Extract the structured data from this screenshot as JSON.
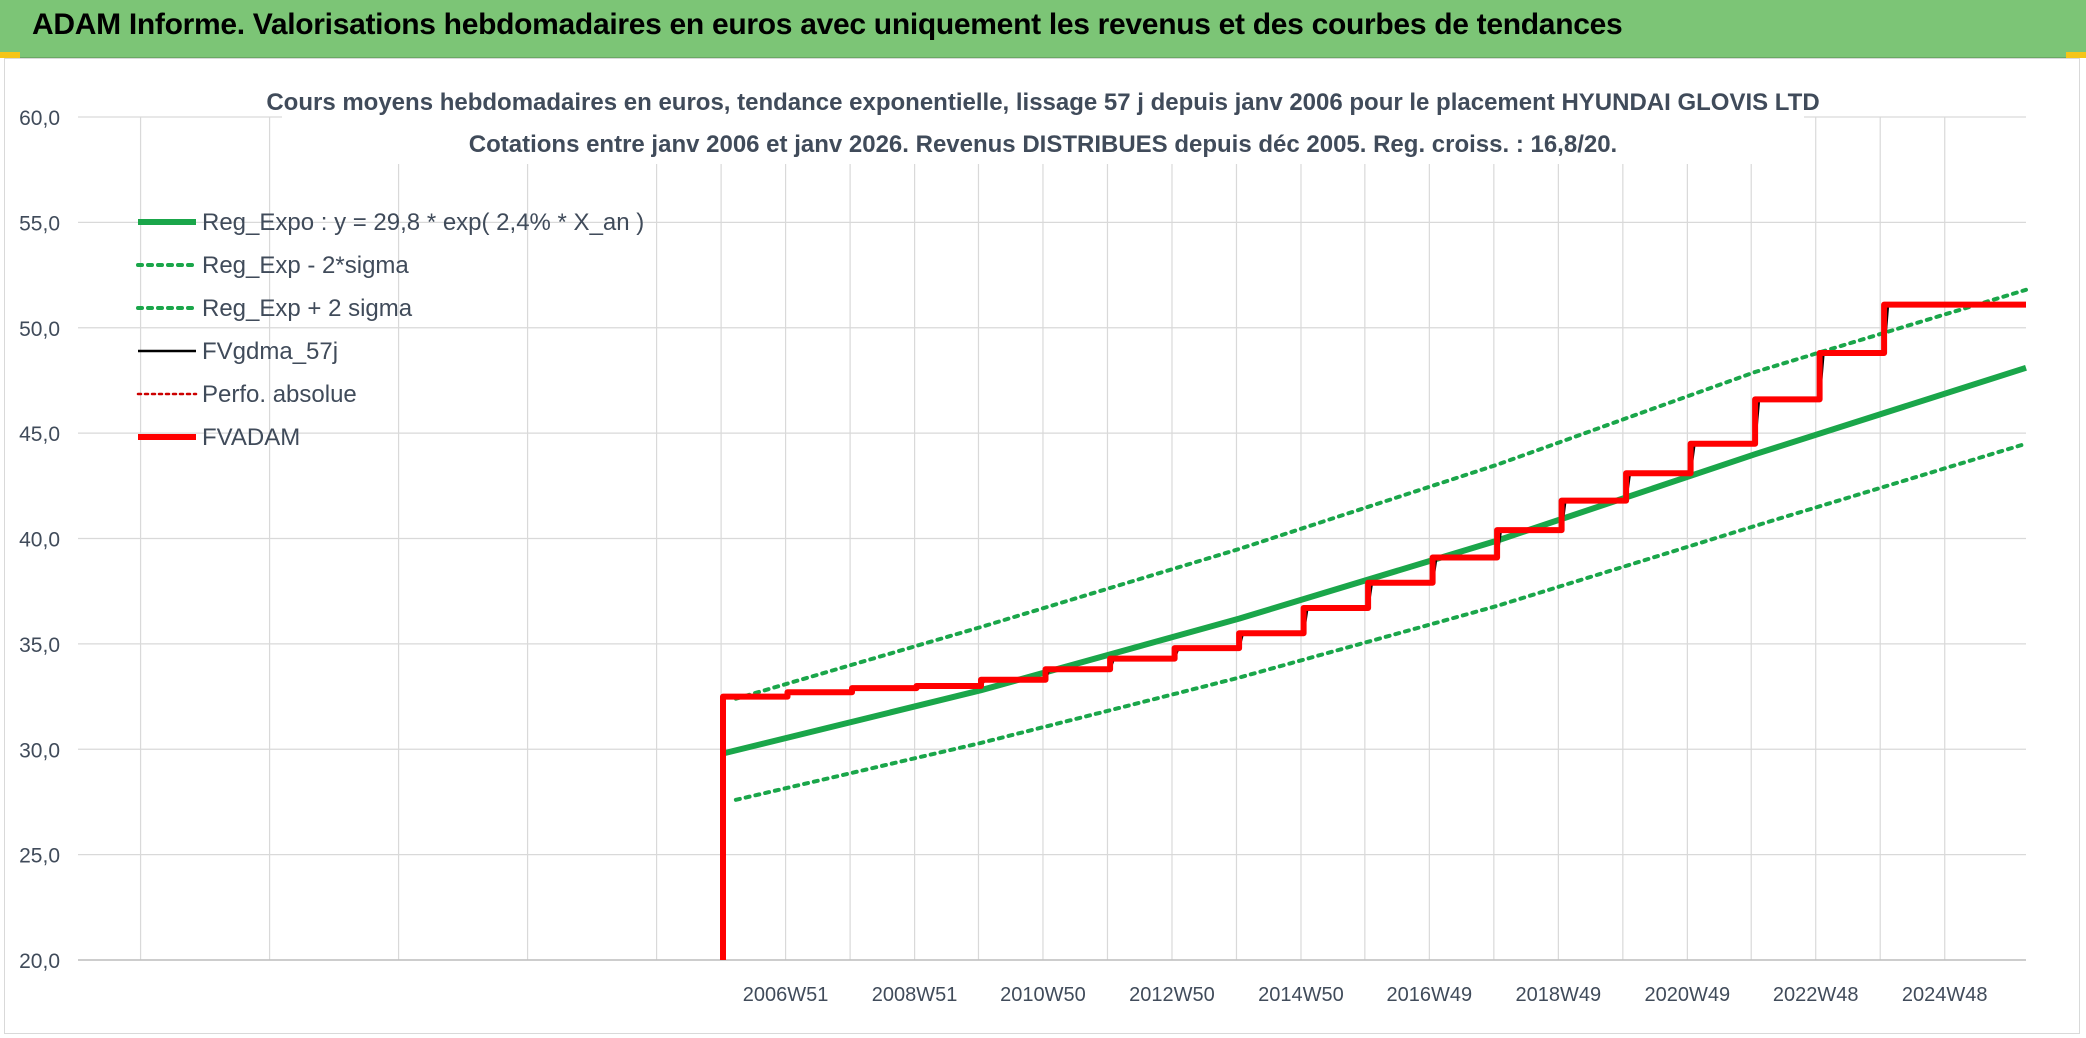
{
  "header": {
    "title": "ADAM Informe. Valorisations hebdomadaires en euros avec uniquement les revenus et des courbes de tendances"
  },
  "colors": {
    "banner": "#7cc576",
    "reg_expo": "#1aa64a",
    "fvgdma": "#000000",
    "fvadam": "#ff0000",
    "perfo": "#cc0000",
    "grid": "#d9d9d9",
    "text": "#404b5a"
  },
  "chart_data": {
    "type": "line",
    "title": "Cours moyens hebdomadaires en euros, tendance exponentielle, lissage 57 j depuis janv 2006 pour le placement HYUNDAI GLOVIS LTD",
    "subtitle": "Cotations entre janv 2006 et janv 2026. Revenus DISTRIBUES depuis déc 2005. Reg. croiss. : 16,8/20.",
    "xlabel": "",
    "ylabel": "",
    "ylim": [
      20,
      60
    ],
    "yticks": [
      "20,0",
      "25,0",
      "30,0",
      "35,0",
      "40,0",
      "45,0",
      "50,0",
      "55,0",
      "60,0"
    ],
    "xlim": [
      1996,
      2026.2
    ],
    "xtick_labels": [
      {
        "label": "2006W51",
        "x": 2006.97
      },
      {
        "label": "2008W51",
        "x": 2008.97
      },
      {
        "label": "2010W50",
        "x": 2010.96
      },
      {
        "label": "2012W50",
        "x": 2012.96
      },
      {
        "label": "2014W50",
        "x": 2014.96
      },
      {
        "label": "2016W49",
        "x": 2016.95
      },
      {
        "label": "2018W49",
        "x": 2018.95
      },
      {
        "label": "2020W49",
        "x": 2020.95
      },
      {
        "label": "2022W48",
        "x": 2022.94
      },
      {
        "label": "2024W48",
        "x": 2024.94
      }
    ],
    "grid": true,
    "legend_position": "top-left",
    "series": [
      {
        "name": "Reg_Expo : y = 29,8 * exp( 2,4% *  X_an )",
        "style": "solid-thick",
        "color": "#1aa64a",
        "x": [
          2006.0,
          2010.0,
          2014.0,
          2018.0,
          2022.0,
          2026.2
        ],
        "y": [
          29.8,
          32.8,
          36.2,
          39.9,
          44.0,
          48.1
        ]
      },
      {
        "name": "Reg_Exp - 2*sigma",
        "style": "dotted",
        "color": "#1aa64a",
        "x": [
          2006.2,
          2010.0,
          2014.0,
          2018.0,
          2022.0,
          2026.2
        ],
        "y": [
          27.6,
          30.3,
          33.4,
          36.8,
          40.6,
          44.5
        ]
      },
      {
        "name": "Reg_Exp + 2 sigma",
        "style": "dotted",
        "color": "#1aa64a",
        "x": [
          2006.2,
          2010.0,
          2014.0,
          2018.0,
          2022.0,
          2026.2
        ],
        "y": [
          32.4,
          35.8,
          39.5,
          43.5,
          47.9,
          51.8
        ]
      },
      {
        "name": "FVgdma_57j",
        "style": "solid-thin",
        "color": "#000000",
        "x": [
          2006.0,
          2006.02,
          2007.0,
          2007.05,
          2008.0,
          2008.06,
          2009.0,
          2009.06,
          2010.0,
          2010.06,
          2011.0,
          2011.06,
          2012.0,
          2012.06,
          2013.0,
          2013.06,
          2014.0,
          2014.06,
          2015.0,
          2015.06,
          2016.0,
          2016.06,
          2017.0,
          2017.06,
          2018.0,
          2018.06,
          2019.0,
          2019.06,
          2020.0,
          2020.06,
          2021.0,
          2021.06,
          2022.0,
          2022.06,
          2023.0,
          2023.06,
          2024.0,
          2024.06,
          2025.0,
          2025.06,
          2026.2
        ],
        "y": [
          20.0,
          32.5,
          32.5,
          32.7,
          32.7,
          32.9,
          32.9,
          33.0,
          33.0,
          33.3,
          33.3,
          33.8,
          33.8,
          34.3,
          34.3,
          34.8,
          34.8,
          35.5,
          35.5,
          36.7,
          36.7,
          37.9,
          37.9,
          39.1,
          39.1,
          40.4,
          40.4,
          41.8,
          41.8,
          43.1,
          43.1,
          44.5,
          44.5,
          46.6,
          46.6,
          48.8,
          48.8,
          51.1,
          51.1,
          51.1,
          51.1
        ]
      },
      {
        "name": "Perfo. absolue",
        "style": "dotted-thin",
        "color": "#cc0000",
        "x": [],
        "y": []
      },
      {
        "name": "FVADAM",
        "style": "solid-thick",
        "color": "#ff0000",
        "x": [
          2006.0,
          2006.0,
          2007.0,
          2007.0,
          2008.0,
          2008.0,
          2009.0,
          2009.0,
          2010.0,
          2010.0,
          2011.0,
          2011.0,
          2012.0,
          2012.0,
          2013.0,
          2013.0,
          2014.0,
          2014.0,
          2015.0,
          2015.0,
          2016.0,
          2016.0,
          2017.0,
          2017.0,
          2018.0,
          2018.0,
          2019.0,
          2019.0,
          2020.0,
          2020.0,
          2021.0,
          2021.0,
          2022.0,
          2022.0,
          2023.0,
          2023.0,
          2024.0,
          2024.0,
          2025.0,
          2025.0,
          2026.2
        ],
        "y": [
          20.0,
          32.5,
          32.5,
          32.7,
          32.7,
          32.9,
          32.9,
          33.0,
          33.0,
          33.3,
          33.3,
          33.8,
          33.8,
          34.3,
          34.3,
          34.8,
          34.8,
          35.5,
          35.5,
          36.7,
          36.7,
          37.9,
          37.9,
          39.1,
          39.1,
          40.4,
          40.4,
          41.8,
          41.8,
          43.1,
          43.1,
          44.5,
          44.5,
          46.6,
          46.6,
          48.8,
          48.8,
          51.1,
          51.1,
          51.1,
          51.1
        ]
      }
    ]
  }
}
